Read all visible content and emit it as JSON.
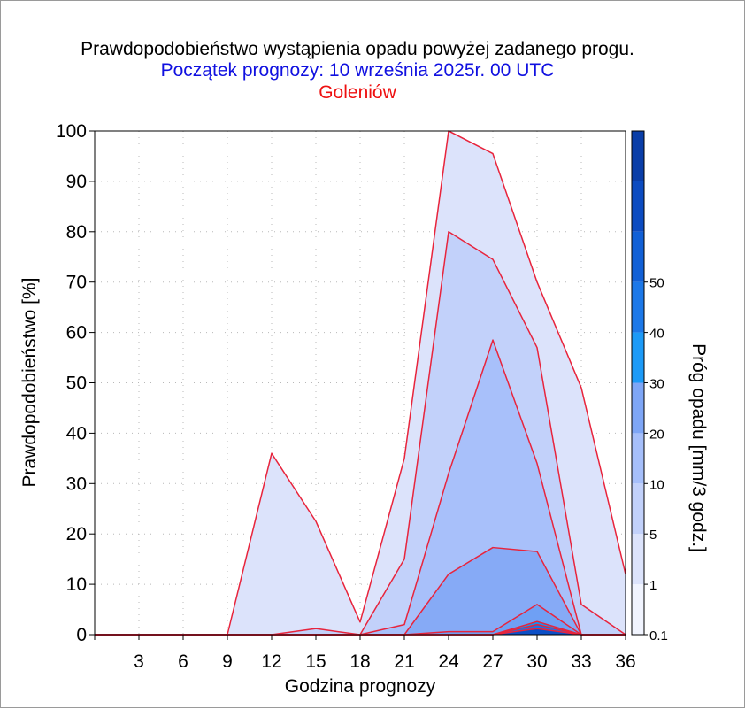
{
  "header": {
    "title": "Prawdopodobieństwo wystąpienia opadu powyżej zadanego progu.",
    "subtitle": "Początek prognozy: 10 września 2025r. 00 UTC",
    "location": "Goleniów"
  },
  "chart_data": {
    "type": "area",
    "title": "Prawdopodobieństwo wystąpienia opadu powyżej zadanego progu.",
    "xlabel": "Godzina prognozy",
    "ylabel": "Prawdopodobieństwo [%]",
    "colorbar_label": "Próg opadu [mm/3 godz.]",
    "xlim": [
      0,
      36
    ],
    "ylim": [
      0,
      100
    ],
    "xticks": [
      3,
      6,
      9,
      12,
      15,
      18,
      21,
      24,
      27,
      30,
      33,
      36
    ],
    "yticks": [
      0,
      10,
      20,
      30,
      40,
      50,
      60,
      70,
      80,
      90,
      100
    ],
    "grid": true,
    "x": [
      0,
      3,
      6,
      9,
      12,
      15,
      18,
      21,
      24,
      27,
      30,
      33,
      36
    ],
    "series": [
      {
        "name": "0.1",
        "color": "#dce3fb",
        "values": [
          0,
          0,
          0,
          0,
          36,
          22.5,
          2.5,
          35,
          100,
          95.5,
          70,
          49,
          12
        ]
      },
      {
        "name": "1",
        "color": "#c2d1fa",
        "values": [
          0,
          0,
          0,
          0,
          0,
          1.2,
          0,
          15,
          80,
          74.5,
          57,
          6,
          0
        ]
      },
      {
        "name": "5",
        "color": "#a8c0fa",
        "values": [
          0,
          0,
          0,
          0,
          0,
          0,
          0,
          2,
          32,
          58.5,
          34,
          0,
          0
        ]
      },
      {
        "name": "10",
        "color": "#86aaf6",
        "values": [
          0,
          0,
          0,
          0,
          0,
          0,
          0,
          0,
          12,
          17.3,
          16.5,
          0,
          0
        ]
      },
      {
        "name": "20",
        "color": "#6fa0f4",
        "values": [
          0,
          0,
          0,
          0,
          0,
          0,
          0,
          0,
          0.6,
          0.6,
          6,
          0,
          0
        ]
      },
      {
        "name": "30",
        "color": "#0f96f6",
        "values": [
          0,
          0,
          0,
          0,
          0,
          0,
          0,
          0,
          0,
          0,
          2.6,
          0,
          0
        ]
      },
      {
        "name": "40",
        "color": "#1c74e6",
        "values": [
          0,
          0,
          0,
          0,
          0,
          0,
          0,
          0,
          0,
          0,
          2,
          0,
          0
        ]
      },
      {
        "name": "50",
        "color": "#0c4fc6",
        "values": [
          0,
          0,
          0,
          0,
          0,
          0,
          0,
          0,
          0,
          0,
          1.2,
          0,
          0
        ]
      }
    ],
    "colorbar": {
      "tick_labels": [
        "0.1",
        "1",
        "5",
        "10",
        "20",
        "30",
        "40",
        "50"
      ],
      "colors": [
        "#f1f4fe",
        "#dce3fb",
        "#c2d1fa",
        "#a6bffa",
        "#7ea6f6",
        "#1c9af7",
        "#1c78e8",
        "#1160d6",
        "#0c4bc0",
        "#0a3ea8"
      ]
    }
  }
}
